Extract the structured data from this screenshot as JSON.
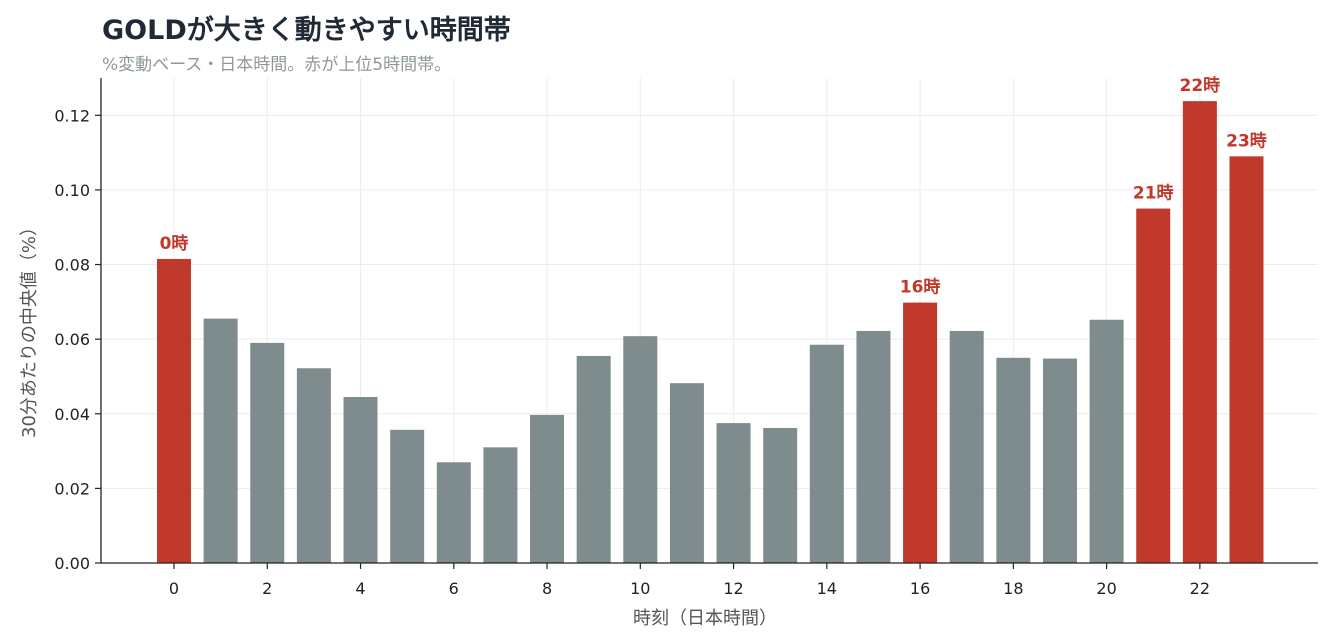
{
  "chart_data": {
    "type": "bar",
    "title": "GOLDが大きく動きやすい時間帯",
    "subtitle": "%変動ベース・日本時間。赤が上位5時間帯。",
    "xlabel": "時刻（日本時間）",
    "ylabel": "30分あたりの中央値（%）",
    "categories": [
      0,
      1,
      2,
      3,
      4,
      5,
      6,
      7,
      8,
      9,
      10,
      11,
      12,
      13,
      14,
      15,
      16,
      17,
      18,
      19,
      20,
      21,
      22,
      23
    ],
    "values": [
      0.0815,
      0.0655,
      0.059,
      0.0522,
      0.0445,
      0.0357,
      0.027,
      0.031,
      0.0397,
      0.0555,
      0.0608,
      0.0482,
      0.0375,
      0.0362,
      0.0585,
      0.0622,
      0.0698,
      0.0622,
      0.055,
      0.0548,
      0.0652,
      0.095,
      0.1238,
      0.109
    ],
    "highlighted": [
      0,
      16,
      21,
      22,
      23
    ],
    "highlight_labels": [
      "0時",
      "16時",
      "21時",
      "22時",
      "23時"
    ],
    "ylim": [
      0,
      0.13
    ],
    "yticks": [
      "0.00",
      "0.02",
      "0.04",
      "0.06",
      "0.08",
      "0.10",
      "0.12"
    ],
    "xticks": [
      "0",
      "2",
      "4",
      "6",
      "8",
      "10",
      "12",
      "14",
      "16",
      "18",
      "20",
      "22"
    ],
    "colors": {
      "highlight": "#c0392b",
      "normal": "#7f8c8d"
    },
    "grid": true
  }
}
